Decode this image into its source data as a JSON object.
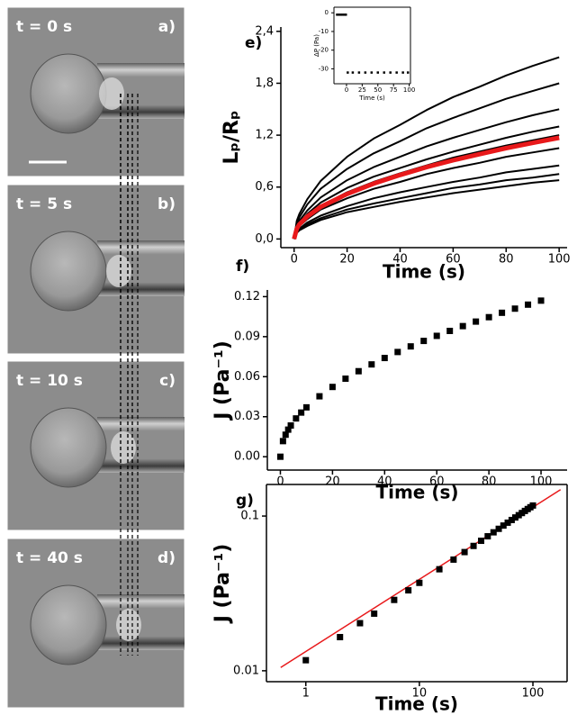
{
  "image_panels": [
    {
      "time": "t = 0 s",
      "label": "a)"
    },
    {
      "time": "t = 5 s",
      "label": "b)"
    },
    {
      "time": "t = 10 s",
      "label": "c)"
    },
    {
      "time": "t = 40 s",
      "label": "d)"
    }
  ],
  "chart_data": [
    {
      "type": "line",
      "panel_label": "e)",
      "xlabel": "Time (s)",
      "ylabel": "Lₚ/Rₚ",
      "x": [
        0,
        1,
        2,
        5,
        10,
        20,
        30,
        40,
        50,
        60,
        70,
        80,
        90,
        100
      ],
      "series": [
        {
          "color": "#000000",
          "width": 2,
          "values": [
            0,
            0.21,
            0.29,
            0.46,
            0.67,
            0.95,
            1.16,
            1.32,
            1.49,
            1.64,
            1.76,
            1.89,
            2.0,
            2.1
          ]
        },
        {
          "color": "#000000",
          "width": 2,
          "values": [
            0,
            0.18,
            0.25,
            0.4,
            0.58,
            0.81,
            0.99,
            1.13,
            1.28,
            1.4,
            1.51,
            1.62,
            1.71,
            1.8
          ]
        },
        {
          "color": "#000000",
          "width": 2,
          "values": [
            0,
            0.15,
            0.21,
            0.33,
            0.48,
            0.68,
            0.83,
            0.95,
            1.07,
            1.17,
            1.26,
            1.35,
            1.43,
            1.5
          ]
        },
        {
          "color": "#000000",
          "width": 2,
          "values": [
            0,
            0.13,
            0.18,
            0.29,
            0.42,
            0.59,
            0.72,
            0.82,
            0.92,
            1.01,
            1.09,
            1.17,
            1.24,
            1.3
          ]
        },
        {
          "color": "#000000",
          "width": 2,
          "values": [
            0,
            0.12,
            0.17,
            0.26,
            0.38,
            0.54,
            0.66,
            0.76,
            0.85,
            0.94,
            1.01,
            1.08,
            1.14,
            1.2
          ]
        },
        {
          "color": "#000000",
          "width": 2,
          "values": [
            0,
            0.11,
            0.15,
            0.23,
            0.34,
            0.47,
            0.58,
            0.66,
            0.75,
            0.82,
            0.88,
            0.95,
            1.0,
            1.05
          ]
        },
        {
          "color": "#000000",
          "width": 2,
          "values": [
            0,
            0.09,
            0.12,
            0.19,
            0.27,
            0.38,
            0.47,
            0.54,
            0.6,
            0.66,
            0.71,
            0.77,
            0.81,
            0.85
          ]
        },
        {
          "color": "#000000",
          "width": 2,
          "values": [
            0,
            0.08,
            0.11,
            0.17,
            0.24,
            0.34,
            0.41,
            0.47,
            0.53,
            0.59,
            0.63,
            0.68,
            0.71,
            0.75
          ]
        },
        {
          "color": "#000000",
          "width": 2,
          "values": [
            0,
            0.07,
            0.1,
            0.15,
            0.22,
            0.31,
            0.37,
            0.43,
            0.48,
            0.53,
            0.57,
            0.61,
            0.65,
            0.68
          ]
        },
        {
          "color": "#e8191b",
          "width": 5,
          "values": [
            0,
            0.12,
            0.17,
            0.26,
            0.37,
            0.52,
            0.64,
            0.74,
            0.83,
            0.91,
            0.98,
            1.05,
            1.11,
            1.17
          ]
        }
      ],
      "xlim": [
        -5,
        103
      ],
      "xticks": [
        0,
        20,
        40,
        60,
        80,
        100
      ],
      "ylim": [
        -0.1,
        2.45
      ],
      "yticks": [
        {
          "value": 0,
          "label": "0,0"
        },
        {
          "value": 0.6,
          "label": "0,6"
        },
        {
          "value": 1.2,
          "label": "1,2"
        },
        {
          "value": 1.8,
          "label": "1,8"
        },
        {
          "value": 2.4,
          "label": "2,4"
        }
      ]
    },
    {
      "type": "scatter",
      "xlabel": "Time (s)",
      "ylabel": "ΔP (Pa)",
      "x": [
        -15,
        -12,
        -9,
        -6,
        -3,
        -1,
        0,
        2,
        10,
        20,
        30,
        40,
        50,
        60,
        70,
        80,
        90,
        98
      ],
      "series": [
        {
          "color": "#000000",
          "values": [
            -1,
            -1,
            -1,
            -1,
            -1,
            -1,
            null,
            -32,
            -32,
            -32,
            -32,
            -32,
            -32,
            -32,
            -32,
            -32,
            -32,
            -32
          ]
        }
      ],
      "xlim": [
        -20,
        102
      ],
      "xticks": [
        0,
        25,
        50,
        75,
        100
      ],
      "ylim": [
        -38,
        3
      ],
      "yticks": [
        0,
        -10,
        -20,
        -30
      ]
    },
    {
      "type": "scatter",
      "panel_label": "f)",
      "xlabel": "Time (s)",
      "ylabel": "J (Pa⁻¹)",
      "x": [
        0,
        1,
        2,
        3,
        4,
        6,
        8,
        10,
        15,
        20,
        25,
        30,
        35,
        40,
        45,
        50,
        55,
        60,
        65,
        70,
        75,
        80,
        85,
        90,
        95,
        100
      ],
      "series": [
        {
          "color": "#000000",
          "values": [
            0,
            0.0117,
            0.0165,
            0.0203,
            0.0234,
            0.0287,
            0.0331,
            0.037,
            0.0453,
            0.0523,
            0.0585,
            0.0641,
            0.0692,
            0.074,
            0.0785,
            0.0827,
            0.0868,
            0.0906,
            0.0943,
            0.0979,
            0.1013,
            0.1046,
            0.1079,
            0.111,
            0.114,
            0.117
          ]
        }
      ],
      "xlim": [
        -5,
        110
      ],
      "xticks": [
        0,
        20,
        40,
        60,
        80,
        100
      ],
      "ylim": [
        -0.01,
        0.125
      ],
      "yticks": [
        {
          "value": 0,
          "label": "0.00"
        },
        0.03,
        0.06,
        0.09,
        0.12
      ]
    },
    {
      "type": "scatter",
      "panel_label": "g)",
      "xlabel": "Time (s)",
      "ylabel": "J (Pa⁻¹)",
      "xscale": "log",
      "yscale": "log",
      "x": [
        1,
        2,
        3,
        4,
        6,
        8,
        10,
        15,
        20,
        25,
        30,
        35,
        40,
        45,
        50,
        55,
        60,
        65,
        70,
        75,
        80,
        85,
        90,
        95,
        100
      ],
      "series": [
        {
          "color": "#000000",
          "values": [
            0.0117,
            0.0165,
            0.0203,
            0.0234,
            0.0287,
            0.0331,
            0.037,
            0.0453,
            0.0523,
            0.0585,
            0.0641,
            0.0692,
            0.074,
            0.0785,
            0.0827,
            0.0868,
            0.0906,
            0.0943,
            0.0979,
            0.1013,
            0.1046,
            0.1079,
            0.111,
            0.114,
            0.117
          ]
        }
      ],
      "fit": {
        "color": "#e8191b",
        "x": [
          0.6,
          175
        ],
        "values": [
          0.0105,
          0.148
        ]
      },
      "xlim": [
        0.45,
        200
      ],
      "xticks": [
        1,
        10,
        100
      ],
      "ylim": [
        0.0085,
        0.16
      ],
      "yticks": [
        0.01,
        0.1
      ]
    }
  ]
}
